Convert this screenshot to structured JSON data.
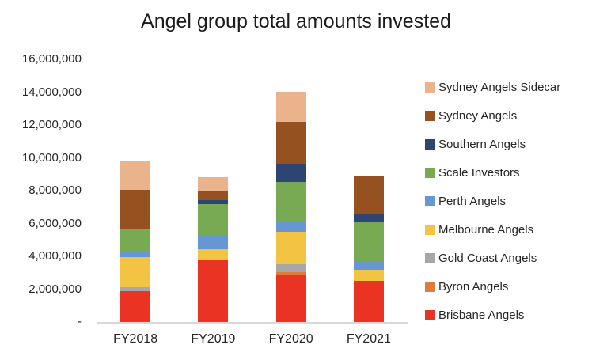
{
  "chart_data": {
    "type": "bar",
    "stacked": true,
    "title": "Angel group total amounts invested",
    "xlabel": "",
    "ylabel": "",
    "ylim": [
      0,
      16000000
    ],
    "grid": false,
    "legend_position": "right",
    "categories": [
      "FY2018",
      "FY2019",
      "FY2020",
      "FY2021"
    ],
    "y_ticks": [
      {
        "label": "16,000,000",
        "value": 16000000
      },
      {
        "label": "14,000,000",
        "value": 14000000
      },
      {
        "label": "12,000,000",
        "value": 12000000
      },
      {
        "label": "10,000,000",
        "value": 10000000
      },
      {
        "label": "8,000,000",
        "value": 8000000
      },
      {
        "label": "6,000,000",
        "value": 6000000
      },
      {
        "label": "4,000,000",
        "value": 4000000
      },
      {
        "label": "2,000,000",
        "value": 2000000
      },
      {
        "label": "-",
        "value": 0
      }
    ],
    "series": [
      {
        "name": "Brisbane Angels",
        "color": "#EA3323",
        "values": [
          1900000,
          3750000,
          2860000,
          2500000
        ]
      },
      {
        "name": "Byron Angels",
        "color": "#DE7C3B",
        "values": [
          0,
          0,
          190000,
          0
        ]
      },
      {
        "name": "Gold Coast Angels",
        "color": "#A7A7A7",
        "values": [
          200000,
          0,
          450000,
          0
        ]
      },
      {
        "name": "Melbourne Angels",
        "color": "#F3C344",
        "values": [
          1850000,
          680000,
          2000000,
          680000
        ]
      },
      {
        "name": "Perth Angels",
        "color": "#6697D2",
        "values": [
          270000,
          830000,
          610000,
          530000
        ]
      },
      {
        "name": "Scale Investors",
        "color": "#78A953",
        "values": [
          1450000,
          1900000,
          2440000,
          2360000
        ]
      },
      {
        "name": "Southern Angels",
        "color": "#2D4572",
        "values": [
          0,
          240000,
          1090000,
          530000
        ]
      },
      {
        "name": "Sydney Angels",
        "color": "#95511F",
        "values": [
          2400000,
          560000,
          2570000,
          2280000
        ]
      },
      {
        "name": "Sydney Angels Sidecar",
        "color": "#EAB38B",
        "values": [
          1700000,
          850000,
          1800000,
          0
        ]
      }
    ]
  }
}
